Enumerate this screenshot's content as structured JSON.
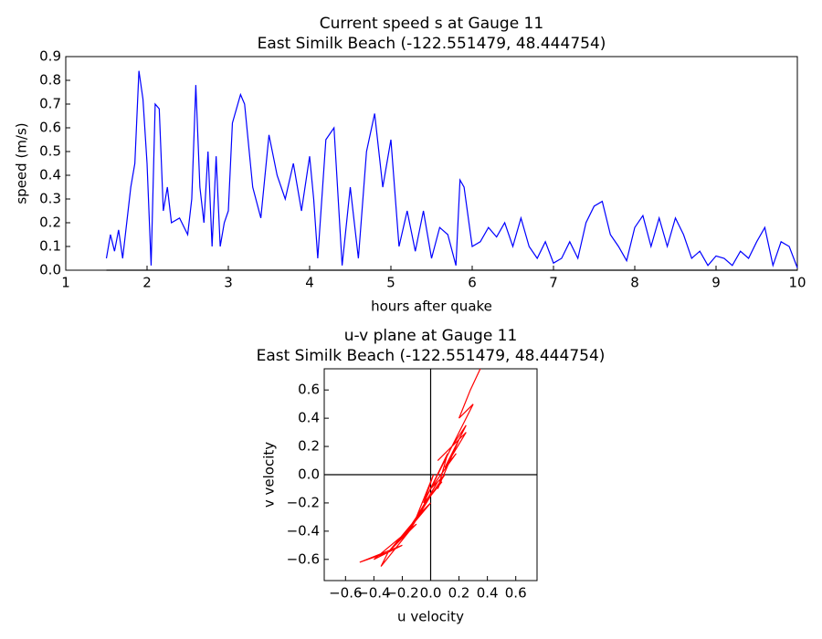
{
  "chart_data": [
    {
      "type": "line",
      "title": "Current speed s at Gauge 11",
      "subtitle": "East Similk Beach  (-122.551479, 48.444754)",
      "x_label": "hours after quake",
      "y_label": "speed (m/s)",
      "color": "#0000ff",
      "zero_lines": true,
      "xlim": [
        1,
        10
      ],
      "xticks": [
        1,
        2,
        3,
        4,
        5,
        6,
        7,
        8,
        9,
        10
      ],
      "ylim": [
        0,
        0.9
      ],
      "yticks": [
        {
          "value": 0,
          "label": "0.0"
        },
        0.1,
        0.2,
        0.3,
        0.4,
        0.5,
        0.6,
        0.7,
        0.8,
        0.9
      ],
      "x": [
        1.5,
        1.55,
        1.6,
        1.65,
        1.7,
        1.75,
        1.8,
        1.85,
        1.9,
        1.95,
        2.0,
        2.05,
        2.1,
        2.15,
        2.2,
        2.25,
        2.3,
        2.4,
        2.5,
        2.55,
        2.6,
        2.65,
        2.7,
        2.75,
        2.8,
        2.85,
        2.9,
        2.95,
        3.0,
        3.05,
        3.1,
        3.15,
        3.2,
        3.3,
        3.4,
        3.5,
        3.6,
        3.7,
        3.8,
        3.9,
        4.0,
        4.05,
        4.1,
        4.2,
        4.3,
        4.4,
        4.5,
        4.6,
        4.7,
        4.8,
        4.9,
        5.0,
        5.1,
        5.2,
        5.3,
        5.4,
        5.5,
        5.6,
        5.7,
        5.8,
        5.85,
        5.9,
        6.0,
        6.1,
        6.2,
        6.3,
        6.4,
        6.5,
        6.6,
        6.7,
        6.8,
        6.9,
        7.0,
        7.1,
        7.2,
        7.3,
        7.4,
        7.5,
        7.6,
        7.7,
        7.8,
        7.9,
        8.0,
        8.1,
        8.2,
        8.3,
        8.4,
        8.5,
        8.6,
        8.7,
        8.8,
        8.9,
        9.0,
        9.1,
        9.2,
        9.3,
        9.4,
        9.5,
        9.6,
        9.7,
        9.8,
        9.9,
        10.0
      ],
      "values": [
        0.05,
        0.15,
        0.08,
        0.17,
        0.05,
        0.2,
        0.35,
        0.45,
        0.84,
        0.72,
        0.45,
        0.02,
        0.7,
        0.68,
        0.25,
        0.35,
        0.2,
        0.22,
        0.15,
        0.3,
        0.78,
        0.35,
        0.2,
        0.5,
        0.1,
        0.48,
        0.1,
        0.2,
        0.25,
        0.62,
        0.68,
        0.74,
        0.7,
        0.35,
        0.22,
        0.57,
        0.4,
        0.3,
        0.45,
        0.25,
        0.48,
        0.3,
        0.05,
        0.55,
        0.6,
        0.02,
        0.35,
        0.05,
        0.5,
        0.66,
        0.35,
        0.55,
        0.1,
        0.25,
        0.08,
        0.25,
        0.05,
        0.18,
        0.15,
        0.02,
        0.38,
        0.35,
        0.1,
        0.12,
        0.18,
        0.14,
        0.2,
        0.1,
        0.22,
        0.1,
        0.05,
        0.12,
        0.03,
        0.05,
        0.12,
        0.05,
        0.2,
        0.27,
        0.29,
        0.15,
        0.1,
        0.04,
        0.18,
        0.23,
        0.1,
        0.22,
        0.1,
        0.22,
        0.15,
        0.05,
        0.08,
        0.02,
        0.06,
        0.05,
        0.02,
        0.08,
        0.05,
        0.12,
        0.18,
        0.02,
        0.12,
        0.1,
        0.01
      ]
    },
    {
      "type": "line",
      "title": "u-v plane at Gauge 11",
      "subtitle": "East Similk Beach  (-122.551479, 48.444754)",
      "x_label": "u velocity",
      "y_label": "v velocity",
      "color": "#ff0000",
      "zero_lines": true,
      "xlim": [
        -0.75,
        0.75
      ],
      "xticks": [
        {
          "value": -0.6,
          "label": "−0.6"
        },
        {
          "value": -0.4,
          "label": "−0.4"
        },
        {
          "value": -0.2,
          "label": "−0.2"
        },
        {
          "value": 0,
          "label": "0.0"
        },
        0.2,
        0.4,
        0.6
      ],
      "ylim": [
        -0.75,
        0.75
      ],
      "yticks": [
        {
          "value": -0.6,
          "label": "−0.6"
        },
        {
          "value": -0.4,
          "label": "−0.4"
        },
        {
          "value": -0.2,
          "label": "−0.2"
        },
        {
          "value": 0,
          "label": "0.0"
        },
        0.2,
        0.4,
        0.6
      ],
      "x": [
        0.35,
        0.28,
        0.2,
        0.3,
        0.15,
        0.25,
        0.1,
        0.2,
        0.05,
        0.12,
        -0.05,
        0.02,
        -0.1,
        0.05,
        -0.15,
        0.0,
        -0.2,
        -0.05,
        -0.3,
        -0.1,
        -0.4,
        -0.2,
        -0.5,
        -0.3,
        -0.35,
        -0.15,
        -0.25,
        0.0,
        -0.1,
        0.1,
        0.0,
        0.15,
        0.05,
        0.25,
        0.1,
        0.18,
        0.0,
        -0.05,
        0.08,
        0.0
      ],
      "values": [
        0.75,
        0.6,
        0.4,
        0.5,
        0.2,
        0.35,
        0.05,
        0.25,
        -0.1,
        0.15,
        -0.2,
        0.0,
        -0.3,
        -0.05,
        -0.4,
        -0.15,
        -0.45,
        -0.25,
        -0.55,
        -0.35,
        -0.6,
        -0.5,
        -0.62,
        -0.55,
        -0.65,
        -0.4,
        -0.5,
        -0.2,
        -0.3,
        0.0,
        -0.1,
        0.2,
        0.1,
        0.3,
        0.05,
        0.15,
        -0.1,
        -0.2,
        -0.05,
        -0.15
      ]
    }
  ]
}
